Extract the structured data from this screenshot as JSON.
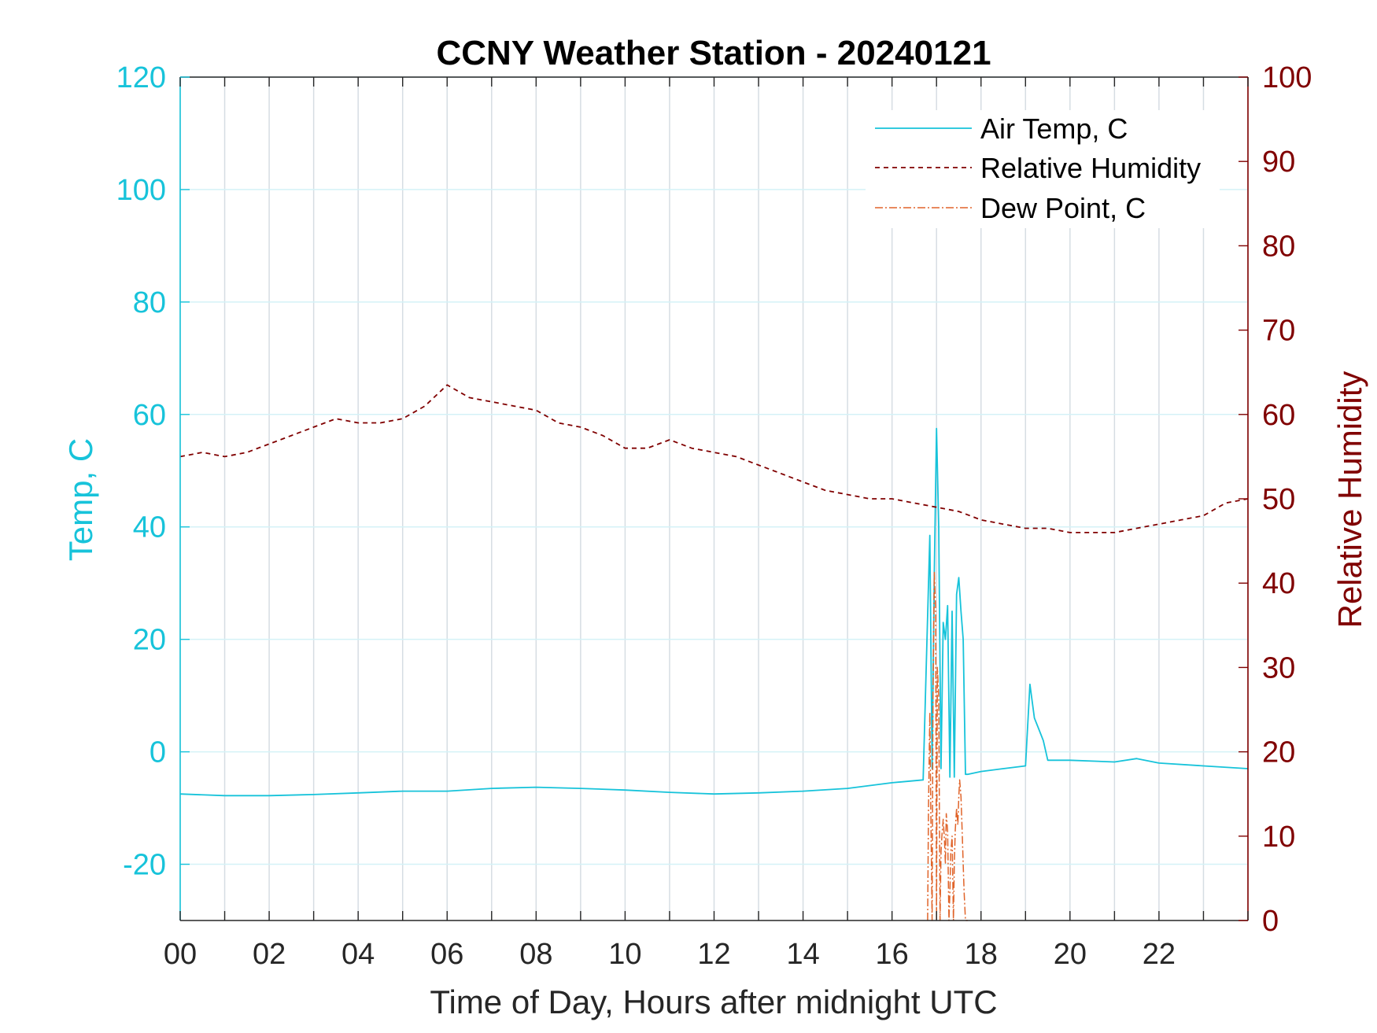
{
  "chart_data": {
    "type": "line",
    "title": "CCNY Weather Station - 20240121",
    "xlabel": "Time of Day, Hours after midnight UTC",
    "ylabel_left": "Temp, C",
    "ylabel_right": "Relative Humidity",
    "xlim": [
      0,
      24
    ],
    "ylim_left": [
      -30,
      120
    ],
    "ylim_right": [
      0,
      100
    ],
    "x_ticks": [
      0,
      2,
      4,
      6,
      8,
      10,
      12,
      14,
      16,
      18,
      20,
      22
    ],
    "x_tick_labels": [
      "00",
      "02",
      "04",
      "06",
      "08",
      "10",
      "12",
      "14",
      "16",
      "18",
      "20",
      "22"
    ],
    "y_left_ticks": [
      -20,
      0,
      20,
      40,
      60,
      80,
      100,
      120
    ],
    "y_left_tick_labels": [
      "-20",
      "0",
      "20",
      "40",
      "60",
      "80",
      "100",
      "120"
    ],
    "y_right_ticks": [
      0,
      10,
      20,
      30,
      40,
      50,
      60,
      70,
      80,
      90,
      100
    ],
    "y_right_tick_labels": [
      "0",
      "10",
      "20",
      "30",
      "40",
      "50",
      "60",
      "70",
      "80",
      "90",
      "100"
    ],
    "grid": true,
    "legend_position": "top-right",
    "colors": {
      "temp": "#17c3da",
      "rh": "#800000",
      "dew": "#e0642a"
    },
    "series": [
      {
        "name": "Air Temp, C",
        "axis": "left",
        "style": "solid",
        "x": [
          0,
          1,
          2,
          3,
          4,
          5,
          6,
          7,
          8,
          9,
          10,
          11,
          12,
          13,
          14,
          15,
          16,
          16.7,
          16.85,
          16.9,
          16.95,
          17.0,
          17.05,
          17.1,
          17.15,
          17.2,
          17.25,
          17.3,
          17.35,
          17.4,
          17.45,
          17.5,
          17.55,
          17.6,
          17.65,
          17.7,
          18,
          18.5,
          19.0,
          19.1,
          19.2,
          19.3,
          19.4,
          19.5,
          19.6,
          20,
          21,
          21.5,
          22,
          23,
          24
        ],
        "values": [
          -7.5,
          -7.8,
          -7.8,
          -7.6,
          -7.3,
          -7.0,
          -7.0,
          -6.5,
          -6.3,
          -6.5,
          -6.8,
          -7.2,
          -7.5,
          -7.3,
          -7.0,
          -6.5,
          -5.5,
          -5.0,
          38.5,
          -3.0,
          32,
          57.5,
          40,
          -3.0,
          23,
          20,
          26,
          -4.5,
          25,
          -4.5,
          28,
          31,
          25,
          20,
          -4.0,
          -4.0,
          -3.5,
          -3.0,
          -2.5,
          12,
          6,
          4,
          2,
          -1.5,
          -1.5,
          -1.5,
          -1.8,
          -1.2,
          -2.0,
          -2.5,
          -3.0
        ]
      },
      {
        "name": "Relative Humidity",
        "axis": "right",
        "style": "dashed",
        "x": [
          0,
          0.5,
          1,
          1.5,
          2,
          2.5,
          3,
          3.5,
          4,
          4.5,
          5,
          5.5,
          6,
          6.5,
          7,
          7.5,
          8,
          8.5,
          9,
          9.5,
          10,
          10.5,
          11,
          11.5,
          12,
          12.5,
          13,
          13.5,
          14,
          14.5,
          15,
          15.5,
          16,
          16.5,
          17,
          17.5,
          18,
          18.5,
          19,
          19.5,
          20,
          20.5,
          21,
          21.5,
          22,
          22.5,
          23,
          23.5,
          24
        ],
        "values": [
          55,
          55.5,
          55,
          55.5,
          56.5,
          57.5,
          58.5,
          59.5,
          59,
          59,
          59.5,
          61,
          63.5,
          62,
          61.5,
          61,
          60.5,
          59,
          58.5,
          57.5,
          56,
          56,
          57,
          56,
          55.5,
          55,
          54,
          53,
          52,
          51,
          50.5,
          50,
          50,
          49.5,
          49,
          48.5,
          47.5,
          47,
          46.5,
          46.5,
          46,
          46,
          46,
          46.5,
          47,
          47.5,
          48,
          49.5,
          50
        ]
      },
      {
        "name": "Dew Point, C",
        "axis": "left",
        "style": "dashdot",
        "x": [
          16.8,
          16.82,
          16.85,
          16.87,
          16.9,
          16.92,
          16.95,
          16.98,
          17.0,
          17.02,
          17.05,
          17.08,
          17.1,
          17.12,
          17.15,
          17.18,
          17.2,
          17.22,
          17.25,
          17.28,
          17.3,
          17.32,
          17.35,
          17.38,
          17.4,
          17.42,
          17.45,
          17.48,
          17.5,
          17.52,
          17.55,
          17.58,
          17.6,
          17.62,
          17.65,
          17.68,
          17.7
        ],
        "values": [
          -30,
          -10,
          7,
          -10,
          -30,
          10,
          32,
          25,
          -30,
          15,
          10,
          -30,
          -18,
          -15,
          -12,
          -16,
          -20,
          -11,
          -14,
          -30,
          -25,
          -18,
          -15,
          -30,
          -20,
          -14,
          -10,
          -13,
          -8,
          -5,
          -8,
          -15,
          -20,
          -25,
          -30,
          -30,
          -30
        ]
      }
    ]
  }
}
